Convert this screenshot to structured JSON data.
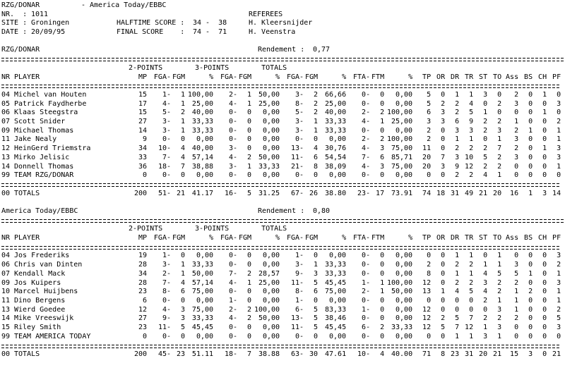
{
  "page": {
    "background": "#ffffff",
    "text_color": "#000000"
  },
  "header": {
    "home_team": "RZG/DONAR",
    "vs_separator": "-",
    "away_team": "America Today/EBBC",
    "nr_label": "NR.  :",
    "nr_value": "1011",
    "site_label": "SITE :",
    "site_value": "Groningen",
    "date_label": "DATE :",
    "date_value": "20/09/95",
    "halftime_label": "HALFTIME SCORE :",
    "halftime_value": "34 -  38",
    "final_label": "FINAL SCORE    :",
    "final_value": "74 -  71",
    "referees_label": "REFEREES",
    "referee1": "H. Kleersnijder",
    "referee2": "H. Veenstra"
  },
  "columns": {
    "nr": "NR",
    "player": "PLAYER",
    "mp": "MP",
    "groups": [
      "2-POINTS",
      "3-POINTS",
      "TOTALS"
    ],
    "shoot": [
      "FGA-",
      "FGM",
      "%"
    ],
    "ft": [
      "FTA-",
      "FTM",
      "%"
    ],
    "tail": [
      "TP",
      "OR",
      "DR",
      "TR",
      "ST",
      "TO",
      "Ass",
      "BS",
      "CH",
      "PF"
    ]
  },
  "tables": [
    {
      "team_title": "RZG/DONAR",
      "rendement_label": "Rendement :",
      "rendement_value": "0,77",
      "players": [
        [
          "04",
          "Michel van Houten",
          "15",
          "1-",
          "1",
          "100,00",
          "2-",
          "1",
          "50,00",
          "3-",
          "2",
          "66,66",
          "0-",
          "0",
          "0,00",
          "5",
          "0",
          "1",
          "1",
          "3",
          "0",
          "2",
          "0",
          "1",
          "0"
        ],
        [
          "05",
          "Patrick Faydherbe",
          "17",
          "4-",
          "1",
          "25,00",
          "4-",
          "1",
          "25,00",
          "8-",
          "2",
          "25,00",
          "0-",
          "0",
          "0,00",
          "5",
          "2",
          "2",
          "4",
          "0",
          "2",
          "3",
          "0",
          "0",
          "3"
        ],
        [
          "06",
          "Klaas Steegstra",
          "15",
          "5-",
          "2",
          "40,00",
          "0-",
          "0",
          "0,00",
          "5-",
          "2",
          "40,00",
          "2-",
          "2",
          "100,00",
          "6",
          "3",
          "2",
          "5",
          "1",
          "0",
          "0",
          "0",
          "1",
          "0"
        ],
        [
          "07",
          "Scott Snider",
          "27",
          "3-",
          "1",
          "33,33",
          "0-",
          "0",
          "0,00",
          "3-",
          "1",
          "33,33",
          "4-",
          "1",
          "25,00",
          "3",
          "3",
          "6",
          "9",
          "2",
          "2",
          "1",
          "0",
          "0",
          "2"
        ],
        [
          "09",
          "Michael Thomas",
          "14",
          "3-",
          "1",
          "33,33",
          "0-",
          "0",
          "0,00",
          "3-",
          "1",
          "33,33",
          "0-",
          "0",
          "0,00",
          "2",
          "0",
          "3",
          "3",
          "2",
          "3",
          "2",
          "1",
          "0",
          "1"
        ],
        [
          "11",
          "Jake Nealy",
          "9",
          "0-",
          "0",
          "0,00",
          "0-",
          "0",
          "0,00",
          "0-",
          "0",
          "0,00",
          "2-",
          "2",
          "100,00",
          "2",
          "0",
          "1",
          "1",
          "0",
          "1",
          "3",
          "0",
          "0",
          "1"
        ],
        [
          "12",
          "HeinGerd Triemstra",
          "34",
          "10-",
          "4",
          "40,00",
          "3-",
          "0",
          "0,00",
          "13-",
          "4",
          "30,76",
          "4-",
          "3",
          "75,00",
          "11",
          "0",
          "2",
          "2",
          "2",
          "7",
          "2",
          "0",
          "1",
          "3"
        ],
        [
          "13",
          "Mirko Jelisic",
          "33",
          "7-",
          "4",
          "57,14",
          "4-",
          "2",
          "50,00",
          "11-",
          "6",
          "54,54",
          "7-",
          "6",
          "85,71",
          "20",
          "7",
          "3",
          "10",
          "5",
          "2",
          "3",
          "0",
          "0",
          "3"
        ],
        [
          "14",
          "Donnell Thomas",
          "36",
          "18-",
          "7",
          "38,88",
          "3-",
          "1",
          "33,33",
          "21-",
          "8",
          "38,09",
          "4-",
          "3",
          "75,00",
          "20",
          "3",
          "9",
          "12",
          "2",
          "2",
          "0",
          "0",
          "0",
          "1"
        ],
        [
          "99",
          "TEAM RZG/DONAR",
          "0",
          "0-",
          "0",
          "0,00",
          "0-",
          "0",
          "0,00",
          "0-",
          "0",
          "0,00",
          "0-",
          "0",
          "0,00",
          "0",
          "0",
          "2",
          "2",
          "4",
          "1",
          "0",
          "0",
          "0",
          "0"
        ]
      ],
      "totals": [
        "00",
        "TOTALS",
        "200",
        "51-",
        "21",
        "41.17",
        "16-",
        "5",
        "31.25",
        "67-",
        "26",
        "38.80",
        "23-",
        "17",
        "73.91",
        "74",
        "18",
        "31",
        "49",
        "21",
        "20",
        "16",
        "1",
        "3",
        "14"
      ]
    },
    {
      "team_title": "America Today/EBBC",
      "rendement_label": "Rendement :",
      "rendement_value": "0,80",
      "players": [
        [
          "04",
          "Jos Frederiks",
          "19",
          "1-",
          "0",
          "0,00",
          "0-",
          "0",
          "0,00",
          "1-",
          "0",
          "0,00",
          "0-",
          "0",
          "0,00",
          "0",
          "0",
          "1",
          "1",
          "0",
          "1",
          "0",
          "0",
          "0",
          "3"
        ],
        [
          "06",
          "Chris van Dinten",
          "28",
          "3-",
          "1",
          "33,33",
          "0-",
          "0",
          "0,00",
          "3-",
          "1",
          "33,33",
          "0-",
          "0",
          "0,00",
          "2",
          "0",
          "2",
          "2",
          "1",
          "1",
          "3",
          "0",
          "0",
          "2"
        ],
        [
          "07",
          "Kendall Mack",
          "34",
          "2-",
          "1",
          "50,00",
          "7-",
          "2",
          "28,57",
          "9-",
          "3",
          "33,33",
          "0-",
          "0",
          "0,00",
          "8",
          "0",
          "1",
          "1",
          "4",
          "5",
          "5",
          "1",
          "0",
          "1"
        ],
        [
          "09",
          "Jos Kuipers",
          "28",
          "7-",
          "4",
          "57,14",
          "4-",
          "1",
          "25,00",
          "11-",
          "5",
          "45,45",
          "1-",
          "1",
          "100,00",
          "12",
          "0",
          "2",
          "2",
          "3",
          "2",
          "2",
          "0",
          "0",
          "3"
        ],
        [
          "10",
          "Marcel Huijbens",
          "23",
          "8-",
          "6",
          "75,00",
          "0-",
          "0",
          "0,00",
          "8-",
          "6",
          "75,00",
          "2-",
          "1",
          "50,00",
          "13",
          "1",
          "4",
          "5",
          "4",
          "2",
          "1",
          "2",
          "0",
          "1"
        ],
        [
          "11",
          "Dino Bergens",
          "6",
          "0-",
          "0",
          "0,00",
          "1-",
          "0",
          "0,00",
          "1-",
          "0",
          "0,00",
          "0-",
          "0",
          "0,00",
          "0",
          "0",
          "0",
          "0",
          "2",
          "1",
          "1",
          "0",
          "0",
          "1"
        ],
        [
          "13",
          "Wierd Goedee",
          "12",
          "4-",
          "3",
          "75,00",
          "2-",
          "2",
          "100,00",
          "6-",
          "5",
          "83,33",
          "1-",
          "0",
          "0,00",
          "12",
          "0",
          "0",
          "0",
          "0",
          "3",
          "1",
          "0",
          "0",
          "2"
        ],
        [
          "14",
          "Mike Vreeswijk",
          "27",
          "9-",
          "3",
          "33,33",
          "4-",
          "2",
          "50,00",
          "13-",
          "5",
          "38,46",
          "0-",
          "0",
          "0,00",
          "12",
          "2",
          "5",
          "7",
          "2",
          "2",
          "2",
          "0",
          "0",
          "5"
        ],
        [
          "15",
          "Riley Smith",
          "23",
          "11-",
          "5",
          "45,45",
          "0-",
          "0",
          "0,00",
          "11-",
          "5",
          "45,45",
          "6-",
          "2",
          "33,33",
          "12",
          "5",
          "7",
          "12",
          "1",
          "3",
          "0",
          "0",
          "0",
          "3"
        ],
        [
          "99",
          "TEAM AMERICA TODAY",
          "0",
          "0-",
          "0",
          "0,00",
          "0-",
          "0",
          "0,00",
          "0-",
          "0",
          "0,00",
          "0-",
          "0",
          "0,00",
          "0",
          "0",
          "1",
          "1",
          "3",
          "1",
          "0",
          "0",
          "0",
          "0"
        ]
      ],
      "totals": [
        "00",
        "TOTALS",
        "200",
        "45-",
        "23",
        "51.11",
        "18-",
        "7",
        "38.88",
        "63-",
        "30",
        "47.61",
        "10-",
        "4",
        "40.00",
        "71",
        "8",
        "23",
        "31",
        "20",
        "21",
        "15",
        "3",
        "0",
        "21"
      ]
    }
  ]
}
